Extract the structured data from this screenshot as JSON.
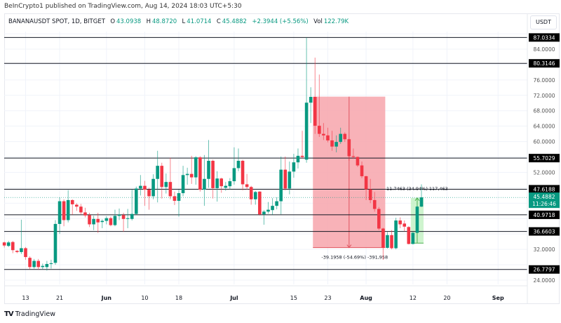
{
  "header": {
    "published": "BeInCrypto1 published on TradingView.com, Aug 14, 2024 18:03 UTC+5:30"
  },
  "legend": {
    "symbol": "BANANAUSDT SPOT, 1D, BITGET",
    "o_label": "O",
    "o": "43.0938",
    "h_label": "H",
    "h": "48.8720",
    "l_label": "L",
    "l": "41.0714",
    "c_label": "C",
    "c": "45.4882",
    "change": "+2.3944 (+5.56%)",
    "vol_label": "Vol",
    "vol": "122.79K"
  },
  "price_axis": {
    "unit": "USDT",
    "ticks": [
      "84.0000",
      "76.0000",
      "72.0000",
      "68.0000",
      "64.0000",
      "60.0000",
      "52.0000",
      "32.0000",
      "24.0000"
    ],
    "current_price": "45.4882",
    "countdown": "11:26:46"
  },
  "footer": {
    "brand": "TradingView",
    "logo": "TV"
  },
  "colors": {
    "up": "#089981",
    "down": "#f23645",
    "level_line": "#131722",
    "measure_down_fill": "#f7a5ab",
    "measure_up_fill": "#b9f0b9",
    "grid": "#f0f3fa"
  },
  "chart_data": {
    "type": "candlestick",
    "ylim": [
      22,
      90
    ],
    "grid": true,
    "x_ticks": [
      {
        "date": "2024-05-13",
        "label": "13",
        "bold": false
      },
      {
        "date": "2024-05-21",
        "label": "21",
        "bold": false
      },
      {
        "date": "2024-06-01",
        "label": "Jun",
        "bold": true
      },
      {
        "date": "2024-06-10",
        "label": "10",
        "bold": false
      },
      {
        "date": "2024-06-18",
        "label": "18",
        "bold": false
      },
      {
        "date": "2024-07-01",
        "label": "Jul",
        "bold": true
      },
      {
        "date": "2024-07-15",
        "label": "15",
        "bold": false
      },
      {
        "date": "2024-07-23",
        "label": "23",
        "bold": false
      },
      {
        "date": "2024-08-01",
        "label": "Aug",
        "bold": true
      },
      {
        "date": "2024-08-12",
        "label": "12",
        "bold": false
      },
      {
        "date": "2024-08-20",
        "label": "20",
        "bold": false
      },
      {
        "date": "2024-09-01",
        "label": "Sep",
        "bold": true
      }
    ],
    "levels": [
      "87.0334",
      "80.3146",
      "55.7029",
      "47.6188",
      "40.9718",
      "36.6603",
      "26.7797"
    ],
    "measures": [
      {
        "from": "2024-07-20",
        "to": "2024-08-05",
        "top": 71.66,
        "bottom": 32.46,
        "direction": "down",
        "label": "-39.1958 (-54.69%) -391,958"
      },
      {
        "from": "2024-08-12",
        "to": "2024-08-14",
        "top": 45.36,
        "bottom": 33.62,
        "direction": "up",
        "label": "11.7463 (34.94%) 117,463"
      }
    ],
    "columns": [
      "date",
      "open",
      "high",
      "low",
      "close"
    ],
    "candles": [
      [
        "2024-05-08",
        33.8,
        34.0,
        32.5,
        33.0
      ],
      [
        "2024-05-09",
        32.9,
        34.2,
        32.6,
        33.8
      ],
      [
        "2024-05-10",
        33.9,
        34.2,
        31.0,
        31.8
      ],
      [
        "2024-05-11",
        31.6,
        31.8,
        31.0,
        31.3
      ],
      [
        "2024-05-12",
        31.3,
        39.7,
        30.8,
        32.3
      ],
      [
        "2024-05-13",
        32.3,
        32.6,
        29.3,
        30.0
      ],
      [
        "2024-05-14",
        29.8,
        30.2,
        26.8,
        27.4
      ],
      [
        "2024-05-15",
        27.4,
        29.5,
        27.0,
        29.0
      ],
      [
        "2024-05-16",
        29.0,
        29.5,
        26.7,
        27.4
      ],
      [
        "2024-05-17",
        27.4,
        28.3,
        26.8,
        27.7
      ],
      [
        "2024-05-18",
        27.4,
        29.0,
        26.5,
        28.2
      ],
      [
        "2024-05-19",
        28.2,
        29.3,
        27.0,
        28.4
      ],
      [
        "2024-05-20",
        28.5,
        39.6,
        28.0,
        38.6
      ],
      [
        "2024-05-21",
        38.6,
        45.5,
        36.0,
        44.5
      ],
      [
        "2024-05-22",
        44.5,
        45.0,
        38.0,
        39.6
      ],
      [
        "2024-05-23",
        39.6,
        47.4,
        39.0,
        44.8
      ],
      [
        "2024-05-24",
        44.8,
        45.0,
        41.0,
        43.7
      ],
      [
        "2024-05-25",
        43.6,
        44.0,
        42.0,
        43.1
      ],
      [
        "2024-05-26",
        43.1,
        43.8,
        41.0,
        41.6
      ],
      [
        "2024-05-27",
        41.6,
        42.8,
        40.3,
        40.8
      ],
      [
        "2024-05-28",
        40.9,
        41.5,
        37.8,
        38.5
      ],
      [
        "2024-05-29",
        38.5,
        40.7,
        37.0,
        39.9
      ],
      [
        "2024-05-30",
        39.9,
        41.5,
        36.3,
        39.0
      ],
      [
        "2024-05-31",
        39.1,
        39.8,
        37.5,
        39.4
      ],
      [
        "2024-06-01",
        39.4,
        40.6,
        38.5,
        40.1
      ],
      [
        "2024-06-02",
        40.1,
        40.5,
        38.0,
        38.3
      ],
      [
        "2024-06-03",
        38.3,
        42.3,
        38.0,
        40.7
      ],
      [
        "2024-06-04",
        40.7,
        42.6,
        39.6,
        41.0
      ],
      [
        "2024-06-05",
        40.9,
        41.5,
        36.6,
        39.9
      ],
      [
        "2024-06-06",
        39.9,
        42.5,
        37.5,
        40.1
      ],
      [
        "2024-06-07",
        39.9,
        47.6,
        39.5,
        41.2
      ],
      [
        "2024-06-08",
        41.2,
        48.3,
        41.0,
        47.8
      ],
      [
        "2024-06-09",
        47.8,
        51.3,
        46.0,
        48.5
      ],
      [
        "2024-06-10",
        48.5,
        49.8,
        43.3,
        47.5
      ],
      [
        "2024-06-11",
        47.5,
        48.0,
        42.3,
        45.8
      ],
      [
        "2024-06-12",
        45.8,
        51.5,
        45.0,
        50.3
      ],
      [
        "2024-06-13",
        50.3,
        57.6,
        44.2,
        53.7
      ],
      [
        "2024-06-14",
        53.7,
        54.5,
        45.2,
        48.2
      ],
      [
        "2024-06-15",
        48.2,
        51.7,
        46.5,
        49.5
      ],
      [
        "2024-06-16",
        49.5,
        55.8,
        45.0,
        45.8
      ],
      [
        "2024-06-17",
        45.8,
        47.0,
        43.5,
        44.6
      ],
      [
        "2024-06-18",
        44.6,
        47.5,
        40.5,
        46.6
      ],
      [
        "2024-06-19",
        46.6,
        53.7,
        45.8,
        51.3
      ],
      [
        "2024-06-20",
        51.3,
        53.2,
        48.8,
        51.6
      ],
      [
        "2024-06-21",
        51.6,
        56.3,
        49.0,
        50.7
      ],
      [
        "2024-06-22",
        50.7,
        56.2,
        48.8,
        55.9
      ],
      [
        "2024-06-23",
        55.9,
        56.2,
        47.0,
        47.5
      ],
      [
        "2024-06-24",
        47.5,
        56.5,
        43.3,
        50.3
      ],
      [
        "2024-06-25",
        50.3,
        60.4,
        48.0,
        55.0
      ],
      [
        "2024-06-26",
        55.0,
        55.3,
        45.2,
        47.9
      ],
      [
        "2024-06-27",
        47.9,
        52.3,
        44.4,
        50.4
      ],
      [
        "2024-06-28",
        50.4,
        50.6,
        46.7,
        48.4
      ],
      [
        "2024-06-29",
        48.0,
        49.5,
        47.2,
        48.5
      ],
      [
        "2024-06-30",
        48.4,
        50.5,
        47.5,
        49.7
      ],
      [
        "2024-07-01",
        49.7,
        58.5,
        48.8,
        53.1
      ],
      [
        "2024-07-02",
        53.1,
        58.2,
        52.3,
        55.0
      ],
      [
        "2024-07-03",
        55.0,
        55.3,
        47.3,
        48.9
      ],
      [
        "2024-07-04",
        48.9,
        51.6,
        47.5,
        48.2
      ],
      [
        "2024-07-05",
        48.2,
        48.5,
        43.6,
        45.0
      ],
      [
        "2024-07-06",
        45.0,
        47.2,
        43.6,
        46.9
      ],
      [
        "2024-07-07",
        47.0,
        47.1,
        40.8,
        41.1
      ],
      [
        "2024-07-08",
        41.1,
        42.2,
        38.4,
        41.8
      ],
      [
        "2024-07-09",
        41.8,
        44.3,
        41.3,
        42.3
      ],
      [
        "2024-07-10",
        42.2,
        45.3,
        41.0,
        43.3
      ],
      [
        "2024-07-11",
        43.3,
        45.5,
        42.4,
        44.5
      ],
      [
        "2024-07-12",
        44.5,
        56.1,
        41.1,
        52.7
      ],
      [
        "2024-07-13",
        52.7,
        56.1,
        47.3,
        47.8
      ],
      [
        "2024-07-14",
        47.8,
        54.8,
        46.3,
        52.2
      ],
      [
        "2024-07-15",
        52.2,
        56.8,
        50.6,
        54.6
      ],
      [
        "2024-07-16",
        54.6,
        58.2,
        53.0,
        56.3
      ],
      [
        "2024-07-17",
        56.3,
        62.8,
        55.5,
        56.0
      ],
      [
        "2024-07-18",
        55.3,
        87.0,
        54.5,
        70.1
      ],
      [
        "2024-07-19",
        70.1,
        74.1,
        64.8,
        71.6
      ],
      [
        "2024-07-20",
        71.6,
        81.8,
        62.0,
        64.1
      ],
      [
        "2024-07-21",
        64.1,
        77.4,
        61.2,
        62.0
      ],
      [
        "2024-07-22",
        62.0,
        64.8,
        60.4,
        61.6
      ],
      [
        "2024-07-23",
        61.6,
        63.6,
        59.8,
        60.3
      ],
      [
        "2024-07-24",
        60.3,
        62.8,
        57.6,
        58.7
      ],
      [
        "2024-07-25",
        58.7,
        61.6,
        57.2,
        59.9
      ],
      [
        "2024-07-26",
        59.9,
        63.6,
        59.4,
        62.0
      ],
      [
        "2024-07-27",
        62.0,
        62.4,
        59.9,
        60.6
      ],
      [
        "2024-07-28",
        60.6,
        60.7,
        55.0,
        56.2
      ],
      [
        "2024-07-29",
        56.2,
        58.2,
        55.5,
        56.0
      ],
      [
        "2024-07-30",
        56.0,
        56.1,
        53.4,
        53.8
      ],
      [
        "2024-07-31",
        53.8,
        54.8,
        50.5,
        51.0
      ],
      [
        "2024-08-01",
        51.0,
        51.1,
        44.8,
        47.6
      ],
      [
        "2024-08-02",
        47.6,
        50.3,
        44.0,
        44.8
      ],
      [
        "2024-08-03",
        44.8,
        46.9,
        41.8,
        42.5
      ],
      [
        "2024-08-04",
        42.5,
        43.0,
        37.0,
        37.4
      ],
      [
        "2024-08-05",
        37.4,
        37.6,
        29.3,
        32.4
      ],
      [
        "2024-08-06",
        32.4,
        36.5,
        32.2,
        35.7
      ],
      [
        "2024-08-07",
        35.7,
        37.0,
        32.0,
        32.3
      ],
      [
        "2024-08-08",
        32.3,
        40.2,
        32.0,
        39.5
      ],
      [
        "2024-08-09",
        39.5,
        40.3,
        37.5,
        38.5
      ],
      [
        "2024-08-10",
        38.7,
        39.5,
        36.7,
        37.9
      ],
      [
        "2024-08-11",
        37.8,
        38.0,
        33.3,
        33.4
      ],
      [
        "2024-08-12",
        33.4,
        36.5,
        33.3,
        36.3
      ],
      [
        "2024-08-13",
        36.3,
        43.3,
        36.2,
        43.1
      ],
      [
        "2024-08-14",
        43.1,
        48.9,
        43.0,
        45.5
      ]
    ]
  }
}
